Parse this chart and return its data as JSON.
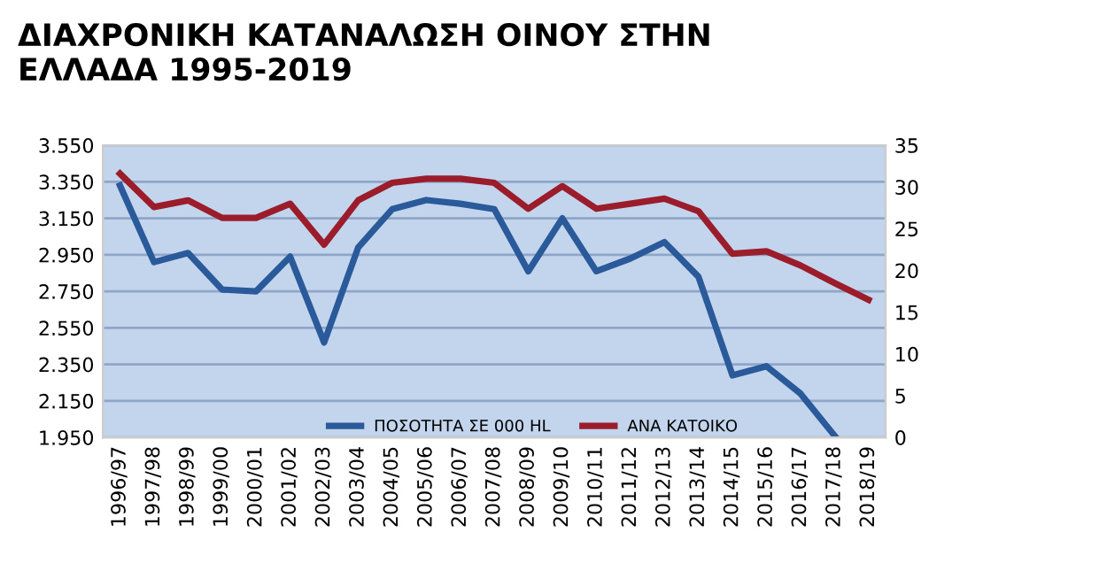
{
  "chart_data": {
    "type": "line",
    "title": "ΔΙΑΧΡΟΝΙΚΗ ΚΑΤΑΝΑΛΩΣΗ ΟΙΝΟΥ ΣΤΗΝ\nΕΛΛΑΔΑ 1995-2019",
    "categories": [
      "1996/97",
      "1997/98",
      "1998/99",
      "1999/00",
      "2000/01",
      "2001/02",
      "2002/03",
      "2003/04",
      "2004/05",
      "2005/06",
      "2006/07",
      "2007/08",
      "2008/09",
      "2009/10",
      "2010/11",
      "2011/12",
      "2012/13",
      "2013/14",
      "2014/15",
      "2015/16",
      "2016/17",
      "2017/18",
      "2018/19"
    ],
    "series": [
      {
        "name": "ΠΟΣΟΤΗΤΑ ΣΕ 000 HL",
        "color": "#2a5a9a",
        "values": [
          3330,
          2910,
          2960,
          2760,
          2750,
          2940,
          2470,
          2990,
          3200,
          3250,
          3230,
          3200,
          2860,
          3150,
          2860,
          2930,
          3020,
          2830,
          2290,
          2340,
          2190,
          1960,
          null
        ]
      },
      {
        "name": "ΑΝΑ ΚΑΤΟΙΚΟ",
        "color": "#9b1c2a",
        "axis": "y2",
        "values": [
          31.6,
          27.6,
          28.4,
          26.3,
          26.3,
          28,
          23.1,
          28.4,
          30.5,
          31,
          31,
          30.5,
          27.4,
          30.1,
          27.4,
          28,
          28.6,
          27.1,
          22,
          22.3,
          20.6,
          18.5,
          16.5
        ]
      }
    ],
    "ylim": [
      1950,
      3550
    ],
    "yticks": [
      {
        "value": 1950,
        "label": "1.950"
      },
      {
        "value": 2150,
        "label": "2.150"
      },
      {
        "value": 2350,
        "label": "2.350"
      },
      {
        "value": 2550,
        "label": "2.550"
      },
      {
        "value": 2750,
        "label": "2.750"
      },
      {
        "value": 2950,
        "label": "2.950"
      },
      {
        "value": 3150,
        "label": "3.150"
      },
      {
        "value": 3350,
        "label": "3.350"
      },
      {
        "value": 3550,
        "label": "3.550"
      }
    ],
    "y2lim": [
      0,
      35
    ],
    "y2ticks": [
      0,
      5,
      10,
      15,
      20,
      25,
      30,
      35
    ],
    "grid": "y",
    "legend": "bottom",
    "marker": "none",
    "line_style": "solid"
  }
}
